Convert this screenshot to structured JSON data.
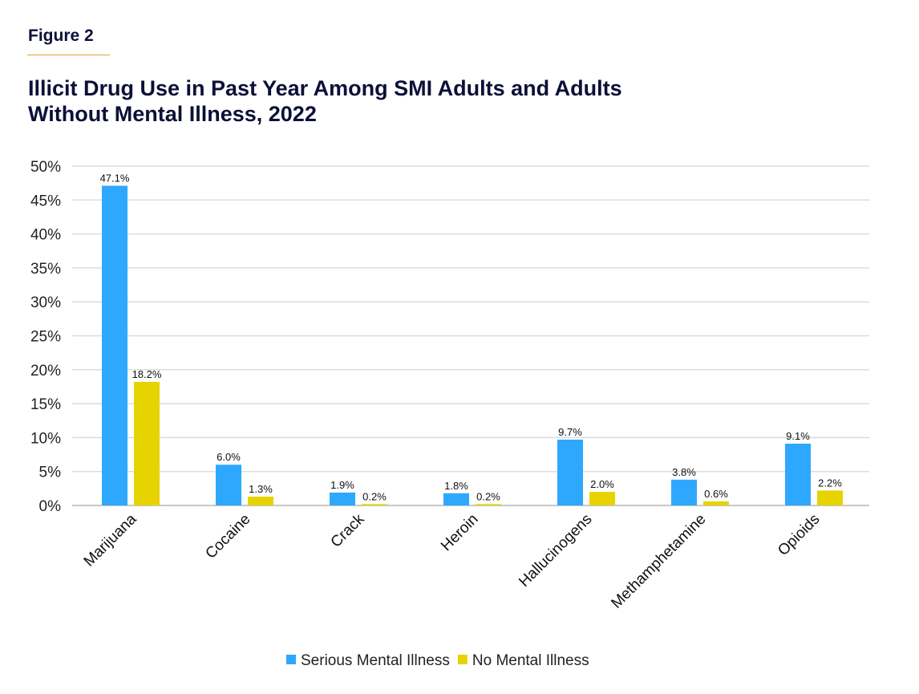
{
  "figure_label": "Figure 2",
  "chart_data": {
    "type": "bar",
    "title": "Illicit Drug Use in Past Year Among SMI Adults and Adults Without Mental Illness, 2022",
    "categories": [
      "Marijuana",
      "Cocaine",
      "Crack",
      "Heroin",
      "Hallucinogens",
      "Methamphetamine",
      "Opioids"
    ],
    "series": [
      {
        "name": "Serious Mental Illness",
        "color": "#2ea8ff",
        "values": [
          47.1,
          6.0,
          1.9,
          1.8,
          9.7,
          3.8,
          9.1
        ],
        "labels": [
          "47.1%",
          "6.0%",
          "1.9%",
          "1.8%",
          "9.7%",
          "3.8%",
          "9.1%"
        ]
      },
      {
        "name": "No Mental Illness",
        "color": "#e6d300",
        "values": [
          18.2,
          1.3,
          0.2,
          0.2,
          2.0,
          0.6,
          2.2
        ],
        "labels": [
          "18.2%",
          "1.3%",
          "0.2%",
          "0.2%",
          "2.0%",
          "0.6%",
          "2.2%"
        ]
      }
    ],
    "yticks": [
      "0%",
      "5%",
      "10%",
      "15%",
      "20%",
      "25%",
      "30%",
      "35%",
      "40%",
      "45%",
      "50%"
    ],
    "ylim": [
      0,
      50
    ],
    "xlabel": "",
    "ylabel": "",
    "grid": true,
    "legend_position": "bottom"
  }
}
